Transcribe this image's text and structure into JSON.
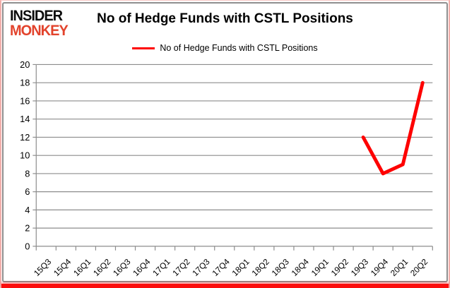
{
  "logo": {
    "line1": "INSIDER",
    "line2": "MONKEY"
  },
  "header": {
    "title": "No of Hedge Funds with CSTL Positions"
  },
  "legend": {
    "label": "No of Hedge Funds with CSTL Positions",
    "color": "#fe0000"
  },
  "colors": {
    "line": "#fe0000",
    "grid": "#8c8c8c",
    "axis_text": "#000000",
    "logo_accent": "#e2432c",
    "bottom_bar": "#fb0d0d",
    "panel_border": "#8f8f8f"
  },
  "chart_data": {
    "type": "line",
    "title": "No of Hedge Funds with CSTL Positions",
    "categories": [
      "15Q3",
      "15Q4",
      "16Q1",
      "16Q2",
      "16Q3",
      "16Q4",
      "17Q1",
      "17Q2",
      "17Q3",
      "17Q4",
      "18Q1",
      "18Q2",
      "18Q3",
      "18Q4",
      "19Q1",
      "19Q2",
      "19Q3",
      "19Q4",
      "20Q1",
      "20Q2"
    ],
    "series": [
      {
        "name": "No of Hedge Funds with CSTL Positions",
        "color": "#fe0000",
        "values": [
          null,
          null,
          null,
          null,
          null,
          null,
          null,
          null,
          null,
          null,
          null,
          null,
          null,
          null,
          null,
          null,
          12,
          8,
          9,
          18
        ]
      }
    ],
    "xlabel": "",
    "ylabel": "",
    "ylim": [
      0,
      20
    ],
    "ytick_step": 2,
    "grid": "horizontal",
    "legend_position": "top-center"
  }
}
